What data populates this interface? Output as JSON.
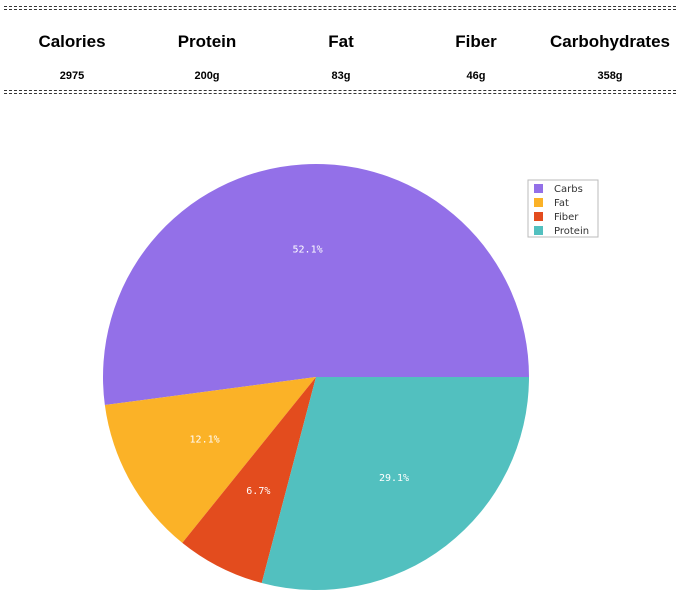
{
  "summary": {
    "headers": [
      "Calories",
      "Protein",
      "Fat",
      "Fiber",
      "Carbohydrates"
    ],
    "values": [
      "2975",
      "200g",
      "83g",
      "46g",
      "358g"
    ]
  },
  "chart_data": {
    "type": "pie",
    "categories": [
      "Carbs",
      "Fat",
      "Fiber",
      "Protein"
    ],
    "values": [
      52.1,
      12.1,
      6.7,
      29.1
    ],
    "value_labels": [
      "52.1%",
      "12.1%",
      "6.7%",
      "29.1%"
    ],
    "colors": [
      "#9370e8",
      "#fbb227",
      "#e34c1e",
      "#52c0bf"
    ],
    "legend": "upper right"
  }
}
